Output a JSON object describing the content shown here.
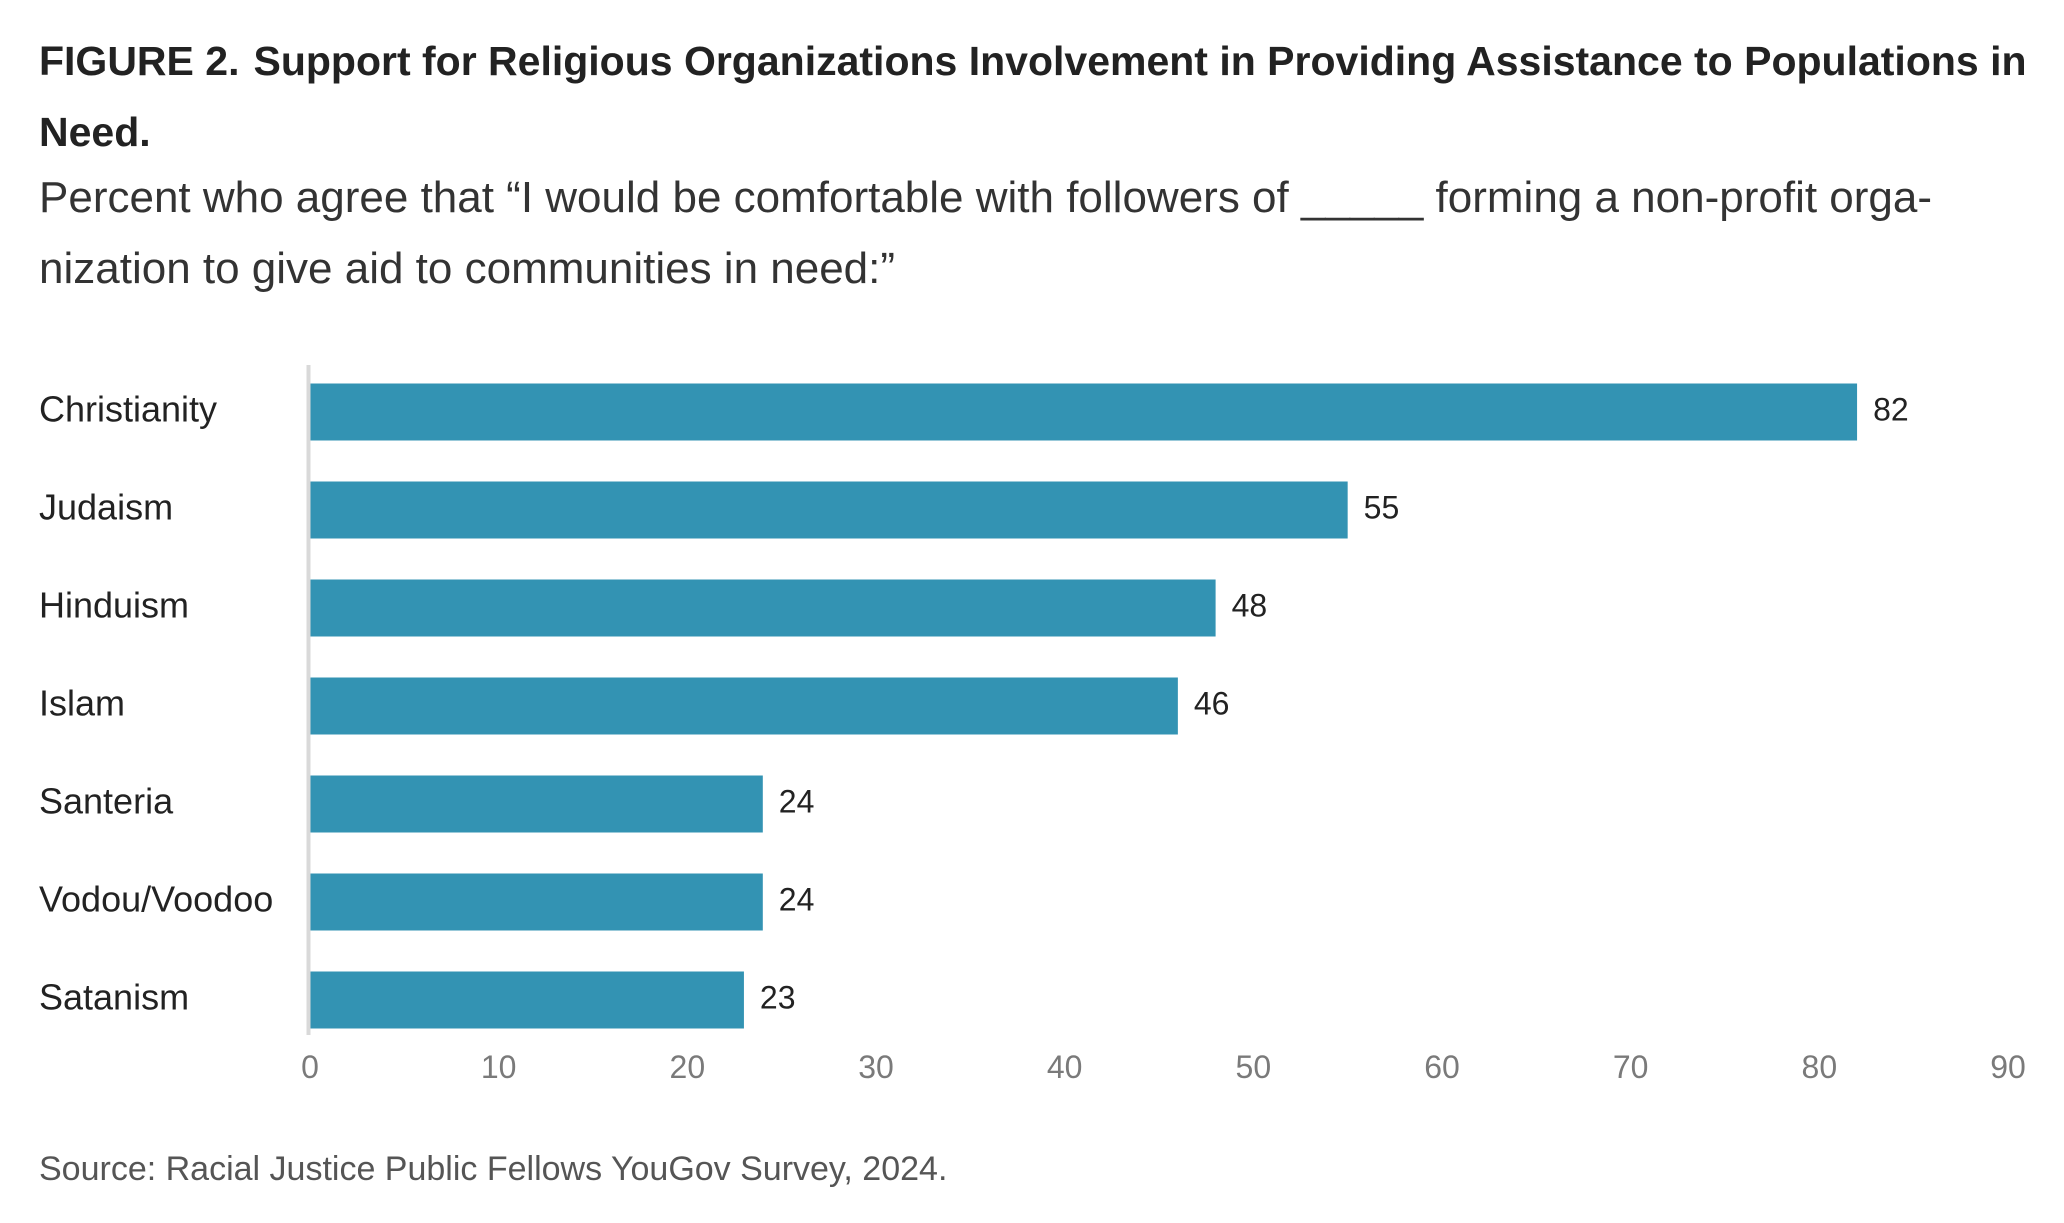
{
  "title": {
    "label": "FIGURE 2.",
    "text": "Support for Religious Organizations Involvement in Providing Assistance to Populations in Need."
  },
  "subtitle": "Percent who agree that “I would be comfortable with followers of _____ forming a non-profit orga-nization to give aid to communities in need:”",
  "source": "Source: Racial Justice Public Fellows YouGov Survey, 2024.",
  "colors": {
    "bar": "#3393b3",
    "axis": "#d9d9d9"
  },
  "chart_data": {
    "type": "bar",
    "orientation": "horizontal",
    "categories": [
      "Christianity",
      "Judaism",
      "Hinduism",
      "Islam",
      "Santeria",
      "Vodou/Voodoo",
      "Satanism"
    ],
    "values": [
      82,
      55,
      48,
      46,
      24,
      24,
      23
    ],
    "value_labels": [
      "82",
      "55",
      "48",
      "46",
      "24",
      "24",
      "23"
    ],
    "xlim": [
      0,
      90
    ],
    "xticks": [
      0,
      10,
      20,
      30,
      40,
      50,
      60,
      70,
      80,
      90
    ],
    "xtick_labels": [
      "0",
      "10",
      "20",
      "30",
      "40",
      "50",
      "60",
      "70",
      "80",
      "90"
    ],
    "grid": false,
    "legend": "none"
  }
}
